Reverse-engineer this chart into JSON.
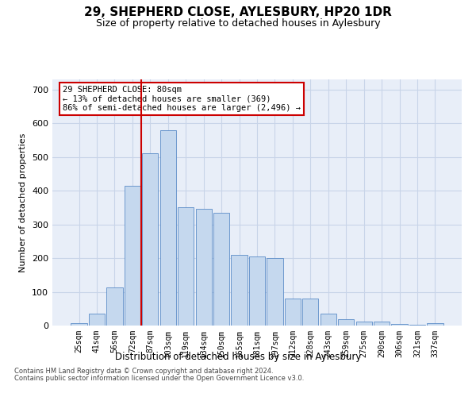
{
  "title": "29, SHEPHERD CLOSE, AYLESBURY, HP20 1DR",
  "subtitle": "Size of property relative to detached houses in Aylesbury",
  "xlabel": "Distribution of detached houses by size in Aylesbury",
  "ylabel": "Number of detached properties",
  "bar_color": "#c5d8ee",
  "bar_edge_color": "#5b8cc8",
  "categories": [
    "25sqm",
    "41sqm",
    "56sqm",
    "72sqm",
    "87sqm",
    "103sqm",
    "119sqm",
    "134sqm",
    "150sqm",
    "165sqm",
    "181sqm",
    "197sqm",
    "212sqm",
    "228sqm",
    "243sqm",
    "259sqm",
    "275sqm",
    "290sqm",
    "306sqm",
    "321sqm",
    "337sqm"
  ],
  "values": [
    8,
    35,
    112,
    415,
    510,
    580,
    350,
    345,
    335,
    210,
    205,
    200,
    80,
    80,
    35,
    20,
    12,
    12,
    5,
    3,
    8
  ],
  "vline_index": 3.5,
  "vline_color": "#cc0000",
  "annotation_text": "29 SHEPHERD CLOSE: 80sqm\n← 13% of detached houses are smaller (369)\n86% of semi-detached houses are larger (2,496) →",
  "annotation_box_color": "#ffffff",
  "annotation_box_edge": "#cc0000",
  "ylim": [
    0,
    730
  ],
  "yticks": [
    0,
    100,
    200,
    300,
    400,
    500,
    600,
    700
  ],
  "grid_color": "#c8d4e8",
  "bg_color": "#e8eef8",
  "footnote1": "Contains HM Land Registry data © Crown copyright and database right 2024.",
  "footnote2": "Contains public sector information licensed under the Open Government Licence v3.0."
}
